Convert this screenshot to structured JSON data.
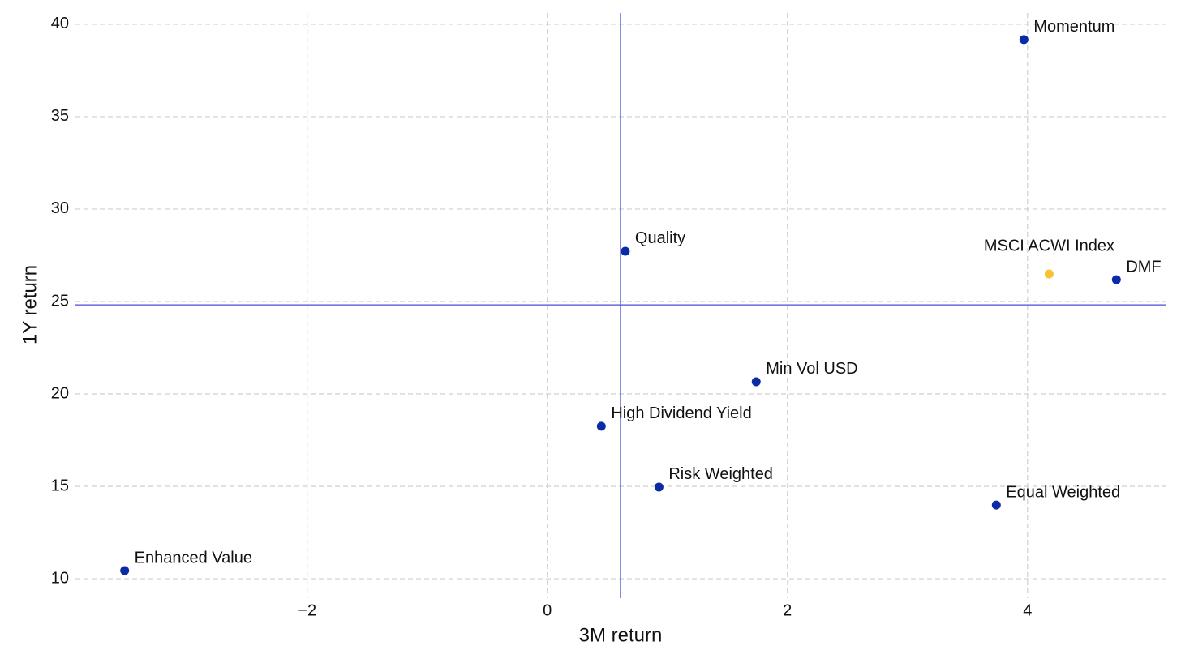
{
  "chart_data": {
    "type": "scatter",
    "xlabel": "3M return",
    "ylabel": "1Y return",
    "color": "#0b2ba6",
    "points": [
      {
        "label": "Momentum",
        "x": 3.97,
        "y": 39.17
      },
      {
        "label": "Quality",
        "x": 0.65,
        "y": 27.72
      },
      {
        "label": "MSCI ACWI Index",
        "x": 4.18,
        "y": 26.49,
        "color": "#f7c431"
      },
      {
        "label": "DMF",
        "x": 4.74,
        "y": 26.18
      },
      {
        "label": "Min Vol USD",
        "x": 1.74,
        "y": 20.66
      },
      {
        "label": "High Dividend Yield",
        "x": 0.45,
        "y": 18.25
      },
      {
        "label": "Risk Weighted",
        "x": 0.93,
        "y": 14.96
      },
      {
        "label": "Equal Weighted",
        "x": 3.74,
        "y": 13.99
      },
      {
        "label": "Enhanced Value",
        "x": -3.52,
        "y": 10.44
      }
    ],
    "vline": 0.61,
    "hline": 24.82,
    "ref_color": "#4a4fd6",
    "xlim": [
      -3.93,
      5.15
    ],
    "ylim": [
      8.95,
      40.61
    ],
    "xticks": [
      {
        "value": -2,
        "label": "−2"
      },
      0,
      2,
      4
    ],
    "yticks": [
      10,
      15,
      20,
      25,
      30,
      35,
      40
    ],
    "grid": true
  }
}
